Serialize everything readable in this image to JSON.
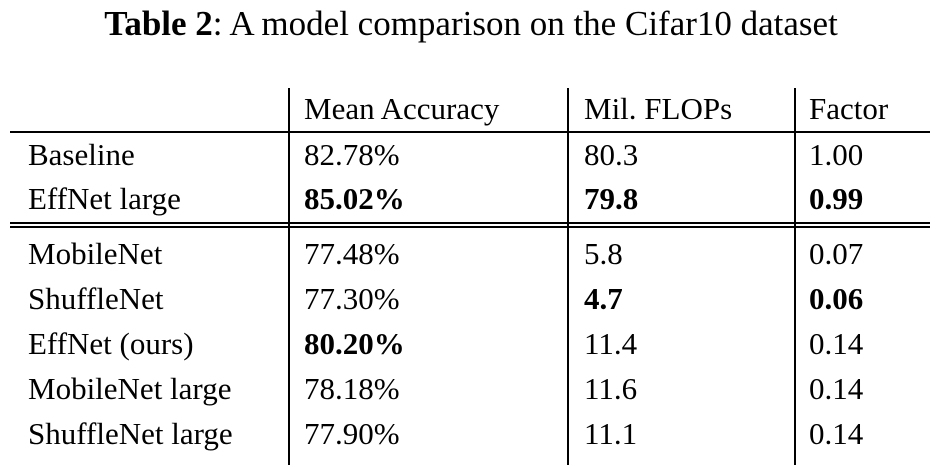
{
  "caption": {
    "label": "Table 2",
    "text": ": A model comparison on the Cifar10 dataset"
  },
  "table": {
    "headers": [
      "",
      "Mean Accuracy",
      "Mil. FLOPs",
      "Factor"
    ],
    "group1": [
      {
        "model": "Baseline",
        "accuracy": "82.78%",
        "flops": "80.3",
        "factor": "1.00"
      },
      {
        "model": "EffNet large",
        "accuracy": "85.02%",
        "flops": "79.8",
        "factor": "0.99"
      }
    ],
    "group2": [
      {
        "model": "MobileNet",
        "accuracy": "77.48%",
        "flops": "5.8",
        "factor": "0.07"
      },
      {
        "model": "ShuffleNet",
        "accuracy": "77.30%",
        "flops": "4.7",
        "factor": "0.06"
      },
      {
        "model": "EffNet (ours)",
        "accuracy": "80.20%",
        "flops": "11.4",
        "factor": "0.14"
      },
      {
        "model": "MobileNet large",
        "accuracy": "78.18%",
        "flops": "11.6",
        "factor": "0.14"
      },
      {
        "model": "ShuffleNet large",
        "accuracy": "77.90%",
        "flops": "11.1",
        "factor": "0.14"
      }
    ]
  }
}
